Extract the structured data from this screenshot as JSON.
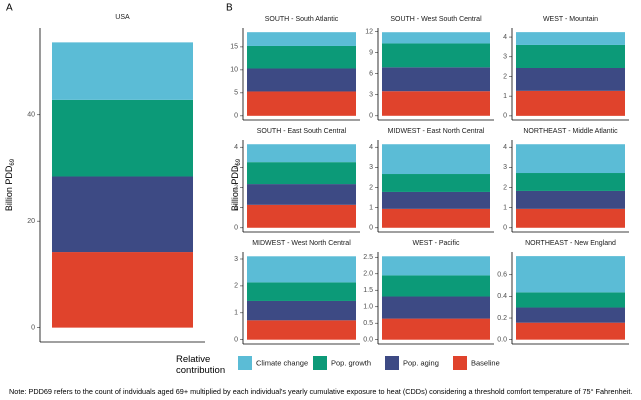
{
  "panel_labels": [
    "A",
    "B"
  ],
  "y_label": "Billion PDD",
  "y_label_sub": "69",
  "legend": {
    "title": "Relative contribution",
    "entries": [
      {
        "name": "Climate change",
        "color": "#5bbcd6"
      },
      {
        "name": "Pop. growth",
        "color": "#0c9a78"
      },
      {
        "name": "Pop. aging",
        "color": "#3d4a84"
      },
      {
        "name": "Baseline",
        "color": "#e0432c"
      }
    ]
  },
  "note": "Note: PDD69 refers to the count of indviduals aged 69+ multiplied by each individual's yearly cumulative exposure to heat (CDDs) considering a threshold comfort temperature of 75° Fahrenheit.",
  "chart_data": [
    {
      "type": "bar",
      "title": "USA",
      "values": [
        10.8,
        14.4,
        14.2,
        14.2
      ],
      "ylim": [
        -2.7,
        56.3
      ],
      "yticks": [
        0,
        20,
        40
      ]
    },
    {
      "type": "bar",
      "title": "SOUTH - South Atlantic",
      "values": [
        3.0,
        4.9,
        5.0,
        5.3
      ],
      "ylim": [
        -0.91,
        19.11
      ],
      "yticks": [
        0,
        5,
        10,
        15
      ]
    },
    {
      "type": "bar",
      "title": "SOUTH - West South Central",
      "values": [
        1.6,
        3.4,
        3.4,
        3.5
      ],
      "ylim": [
        -0.6,
        12.5
      ],
      "yticks": [
        0,
        3,
        6,
        9,
        12
      ]
    },
    {
      "type": "bar",
      "title": "WEST - Mountain",
      "values": [
        0.65,
        1.17,
        1.16,
        1.27
      ],
      "ylim": [
        -0.21,
        4.46
      ],
      "yticks": [
        0,
        1,
        2,
        3,
        4
      ]
    },
    {
      "type": "bar",
      "title": "SOUTH - East South Central",
      "values": [
        0.89,
        1.09,
        1.03,
        1.14
      ],
      "ylim": [
        -0.21,
        4.36
      ],
      "yticks": [
        0,
        1,
        2,
        3,
        4
      ]
    },
    {
      "type": "bar",
      "title": "MIDWEST - East North Central",
      "values": [
        1.48,
        0.89,
        0.84,
        0.94
      ],
      "ylim": [
        -0.21,
        4.36
      ],
      "yticks": [
        0,
        1,
        2,
        3,
        4
      ]
    },
    {
      "type": "bar",
      "title": "NORTHEAST - Middle Atlantic",
      "values": [
        1.43,
        0.89,
        0.89,
        0.94
      ],
      "ylim": [
        -0.21,
        4.36
      ],
      "yticks": [
        0,
        1,
        2,
        3,
        4
      ]
    },
    {
      "type": "bar",
      "title": "MIDWEST - West North Central",
      "values": [
        0.97,
        0.69,
        0.72,
        0.72
      ],
      "ylim": [
        -0.16,
        3.26
      ],
      "yticks": [
        0,
        1,
        2,
        3
      ]
    },
    {
      "type": "bar",
      "title": "WEST - Pacific",
      "values": [
        0.58,
        0.64,
        0.67,
        0.64
      ],
      "ylim": [
        -0.13,
        2.66
      ],
      "yticks": [
        {
          "value": 0,
          "label": "0.0"
        },
        0.5,
        {
          "value": 1,
          "label": "1.0"
        },
        1.5,
        {
          "value": 2,
          "label": "2.0"
        },
        2.5
      ]
    },
    {
      "type": "bar",
      "title": "NORTHEAST - New England",
      "values": [
        0.335,
        0.14,
        0.14,
        0.157
      ],
      "ylim": [
        -0.04,
        0.81
      ],
      "yticks": [
        {
          "value": 0,
          "label": "0.0"
        },
        0.2,
        0.4,
        0.6
      ]
    }
  ]
}
